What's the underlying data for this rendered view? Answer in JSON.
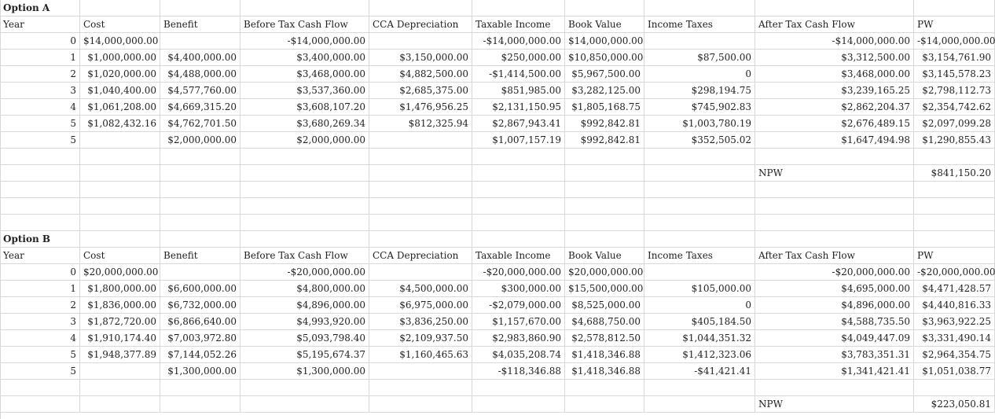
{
  "option_a": {
    "title": "Option A",
    "headers": [
      "Year",
      "Cost",
      "Benefit",
      "Before Tax Cash Flow",
      "CCA Depreciation",
      "Taxable Income",
      "Book Value",
      "Income Taxes",
      "After Tax Cash Flow",
      "PW"
    ],
    "rows": [
      [
        "0",
        "$14,000,000.00",
        "",
        "-$14,000,000.00",
        "",
        "-$14,000,000.00",
        "$14,000,000.00",
        "",
        "-$14,000,000.00",
        "-$14,000,000.00"
      ],
      [
        "1",
        "$1,000,000.00",
        "$4,400,000.00",
        "$3,400,000.00",
        "$3,150,000.00",
        "$250,000.00",
        "$10,850,000.00",
        "$87,500.00",
        "$3,312,500.00",
        "$3,154,761.90"
      ],
      [
        "2",
        "$1,020,000.00",
        "$4,488,000.00",
        "$3,468,000.00",
        "$4,882,500.00",
        "-$1,414,500.00",
        "$5,967,500.00",
        "0",
        "$3,468,000.00",
        "$3,145,578.23"
      ],
      [
        "3",
        "$1,040,400.00",
        "$4,577,760.00",
        "$3,537,360.00",
        "$2,685,375.00",
        "$851,985.00",
        "$3,282,125.00",
        "$298,194.75",
        "$3,239,165.25",
        "$2,798,112.73"
      ],
      [
        "4",
        "$1,061,208.00",
        "$4,669,315.20",
        "$3,608,107.20",
        "$1,476,956.25",
        "$2,131,150.95",
        "$1,805,168.75",
        "$745,902.83",
        "$2,862,204.37",
        "$2,354,742.62"
      ],
      [
        "5",
        "$1,082,432.16",
        "$4,762,701.50",
        "$3,680,269.34",
        "$812,325.94",
        "$2,867,943.41",
        "$992,842.81",
        "$1,003,780.19",
        "$2,676,489.15",
        "$2,097,099.28"
      ],
      [
        "5",
        "",
        "$2,000,000.00",
        "$2,000,000.00",
        "",
        "$1,007,157.19",
        "$992,842.81",
        "$352,505.02",
        "$1,647,494.98",
        "$1,290,855.43"
      ]
    ],
    "npw_label": "NPW",
    "npw_value": "$841,150.20"
  },
  "option_b": {
    "title": "Option B",
    "headers": [
      "Year",
      "Cost",
      "Benefit",
      "Before Tax Cash Flow",
      "CCA Depreciation",
      "Taxable Income",
      "Book Value",
      "Income Taxes",
      "After Tax Cash Flow",
      "PW"
    ],
    "rows": [
      [
        "0",
        "$20,000,000.00",
        "",
        "-$20,000,000.00",
        "",
        "-$20,000,000.00",
        "$20,000,000.00",
        "",
        "-$20,000,000.00",
        "-$20,000,000.00"
      ],
      [
        "1",
        "$1,800,000.00",
        "$6,600,000.00",
        "$4,800,000.00",
        "$4,500,000.00",
        "$300,000.00",
        "$15,500,000.00",
        "$105,000.00",
        "$4,695,000.00",
        "$4,471,428.57"
      ],
      [
        "2",
        "$1,836,000.00",
        "$6,732,000.00",
        "$4,896,000.00",
        "$6,975,000.00",
        "-$2,079,000.00",
        "$8,525,000.00",
        "0",
        "$4,896,000.00",
        "$4,440,816.33"
      ],
      [
        "3",
        "$1,872,720.00",
        "$6,866,640.00",
        "$4,993,920.00",
        "$3,836,250.00",
        "$1,157,670.00",
        "$4,688,750.00",
        "$405,184.50",
        "$4,588,735.50",
        "$3,963,922.25"
      ],
      [
        "4",
        "$1,910,174.40",
        "$7,003,972.80",
        "$5,093,798.40",
        "$2,109,937.50",
        "$2,983,860.90",
        "$2,578,812.50",
        "$1,044,351.32",
        "$4,049,447.09",
        "$3,331,490.14"
      ],
      [
        "5",
        "$1,948,377.89",
        "$7,144,052.26",
        "$5,195,674.37",
        "$1,160,465.63",
        "$4,035,208.74",
        "$1,418,346.88",
        "$1,412,323.06",
        "$3,783,351.31",
        "$2,964,354.75"
      ],
      [
        "5",
        "",
        "$1,300,000.00",
        "$1,300,000.00",
        "",
        "-$118,346.88",
        "$1,418,346.88",
        "-$41,421.41",
        "$1,341,421.41",
        "$1,051,038.77"
      ]
    ],
    "npw_label": "NPW",
    "npw_value": "$223,050.81"
  }
}
